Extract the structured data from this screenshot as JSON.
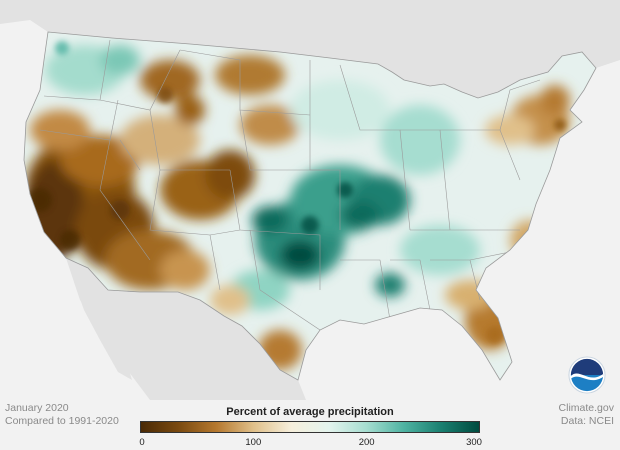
{
  "caption": {
    "month": "January 2020",
    "comparison": "Compared to 1991-2020"
  },
  "credit": {
    "source": "Climate.gov",
    "data": "Data: NCEI"
  },
  "legend": {
    "title": "Percent of average precipitation",
    "ticks": [
      {
        "value": 0,
        "label": "0"
      },
      {
        "value": 100,
        "label": "100"
      },
      {
        "value": 200,
        "label": "200"
      },
      {
        "value": 300,
        "label": "300"
      }
    ],
    "min": 0,
    "max": 300,
    "colors": [
      "#4a2a06",
      "#7a4a10",
      "#b5782e",
      "#e0c08a",
      "#f6efdc",
      "#e4f4ee",
      "#a6ddd0",
      "#4fb3a2",
      "#1a7f70",
      "#004b3f"
    ]
  },
  "logo": {
    "text": "NOAA"
  },
  "colors": {
    "land_base": "#e6f1ee",
    "ocean": "#f2f2f2",
    "neighbor_land": "#e0e0e0",
    "state_border": "#9a9a9a"
  }
}
